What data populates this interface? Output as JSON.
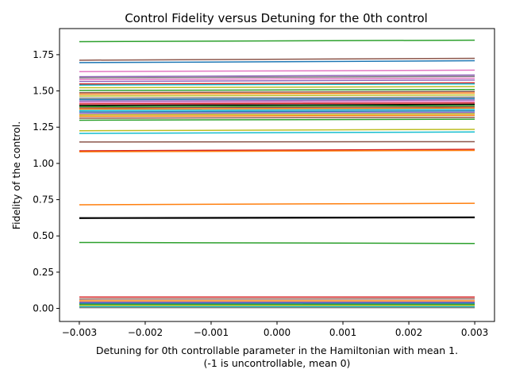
{
  "chart_data": {
    "type": "line",
    "title": "Control Fidelity versus Detuning for the 0th control",
    "xlabel": "Detuning for 0th controllable parameter in the Hamiltonian with mean 1.",
    "xlabel_line2": "(-1 is uncontrollable, mean 0)",
    "ylabel": "Fidelity of the control.",
    "xlim": [
      -0.0033,
      0.0033
    ],
    "ylim": [
      -0.09,
      1.93
    ],
    "xticks": [
      -0.003,
      -0.002,
      -0.001,
      0.0,
      0.001,
      0.002,
      0.003
    ],
    "xtick_labels": [
      "−0.003",
      "−0.002",
      "−0.001",
      "0.000",
      "0.001",
      "0.002",
      "0.003"
    ],
    "yticks": [
      0.0,
      0.25,
      0.5,
      0.75,
      1.0,
      1.25,
      1.5,
      1.75
    ],
    "ytick_labels": [
      "0.00",
      "0.25",
      "0.50",
      "0.75",
      "1.00",
      "1.25",
      "1.50",
      "1.75"
    ],
    "grid": false,
    "legend": "none",
    "x": [
      -0.003,
      0.003
    ],
    "series": [
      {
        "values": [
          1.84,
          1.85
        ],
        "color": "#2ca02c"
      },
      {
        "values": [
          1.712,
          1.725
        ],
        "color": "#8c564b"
      },
      {
        "values": [
          1.695,
          1.708
        ],
        "color": "#1f77b4"
      },
      {
        "values": [
          1.633,
          1.643
        ],
        "color": "#e377c2"
      },
      {
        "values": [
          1.598,
          1.61
        ],
        "color": "#9467bd"
      },
      {
        "values": [
          1.59,
          1.6
        ],
        "color": "#7f7f7f"
      },
      {
        "values": [
          1.578,
          1.588
        ],
        "color": "#e377c2"
      },
      {
        "values": [
          1.565,
          1.575
        ],
        "color": "#9467bd"
      },
      {
        "values": [
          1.548,
          1.556
        ],
        "color": "#d62728"
      },
      {
        "values": [
          1.54,
          1.548
        ],
        "color": "#17becf"
      },
      {
        "values": [
          1.522,
          1.53
        ],
        "color": "#bcbd22"
      },
      {
        "values": [
          1.503,
          1.51
        ],
        "color": "#2ca02c"
      },
      {
        "values": [
          1.488,
          1.496
        ],
        "color": "#8c564b"
      },
      {
        "values": [
          1.478,
          1.486
        ],
        "color": "#ff7f0e"
      },
      {
        "values": [
          1.465,
          1.472
        ],
        "color": "#bcbd22"
      },
      {
        "values": [
          1.45,
          1.457
        ],
        "color": "#7f7f7f"
      },
      {
        "values": [
          1.44,
          1.447
        ],
        "color": "#1f77b4"
      },
      {
        "values": [
          1.43,
          1.437
        ],
        "color": "#9467bd"
      },
      {
        "values": [
          1.42,
          1.427
        ],
        "color": "#e377c2"
      },
      {
        "values": [
          1.41,
          1.417
        ],
        "color": "#d62728"
      },
      {
        "values": [
          1.4,
          1.407
        ],
        "color": "#000000"
      },
      {
        "values": [
          1.392,
          1.399
        ],
        "color": "#2ca02c"
      },
      {
        "values": [
          1.383,
          1.39
        ],
        "color": "#8c564b"
      },
      {
        "values": [
          1.375,
          1.382
        ],
        "color": "#ff7f0e"
      },
      {
        "values": [
          1.365,
          1.372
        ],
        "color": "#17becf"
      },
      {
        "values": [
          1.355,
          1.362
        ],
        "color": "#1f77b4"
      },
      {
        "values": [
          1.345,
          1.352
        ],
        "color": "#9467bd"
      },
      {
        "values": [
          1.335,
          1.342
        ],
        "color": "#bcbd22"
      },
      {
        "values": [
          1.325,
          1.332
        ],
        "color": "#ff7f0e"
      },
      {
        "values": [
          1.312,
          1.318
        ],
        "color": "#8c564b"
      },
      {
        "values": [
          1.298,
          1.305
        ],
        "color": "#2ca02c"
      },
      {
        "values": [
          1.225,
          1.235
        ],
        "color": "#bcbd22"
      },
      {
        "values": [
          1.207,
          1.217
        ],
        "color": "#17becf"
      },
      {
        "values": [
          1.148,
          1.15
        ],
        "color": "#8c564b"
      },
      {
        "values": [
          1.087,
          1.097
        ],
        "color": "#d62728"
      },
      {
        "values": [
          1.08,
          1.09
        ],
        "color": "#ff7f0e"
      },
      {
        "values": [
          0.715,
          0.725
        ],
        "color": "#ff7f0e"
      },
      {
        "values": [
          0.623,
          0.628
        ],
        "color": "#000000",
        "width": 2.2
      },
      {
        "values": [
          0.455,
          0.448
        ],
        "color": "#2ca02c"
      },
      {
        "values": [
          0.078,
          0.078
        ],
        "color": "#d62728"
      },
      {
        "values": [
          0.065,
          0.066
        ],
        "color": "#8c564b"
      },
      {
        "values": [
          0.052,
          0.052
        ],
        "color": "#ff7f0e"
      },
      {
        "values": [
          0.043,
          0.043
        ],
        "color": "#9467bd"
      },
      {
        "values": [
          0.035,
          0.036
        ],
        "color": "#1f77b4"
      },
      {
        "values": [
          0.028,
          0.028
        ],
        "color": "#2ca02c"
      },
      {
        "values": [
          0.02,
          0.02
        ],
        "color": "#bcbd22"
      },
      {
        "values": [
          0.012,
          0.012
        ],
        "color": "#17becf"
      },
      {
        "values": [
          0.005,
          0.005
        ],
        "color": "#7f7f7f"
      }
    ]
  }
}
